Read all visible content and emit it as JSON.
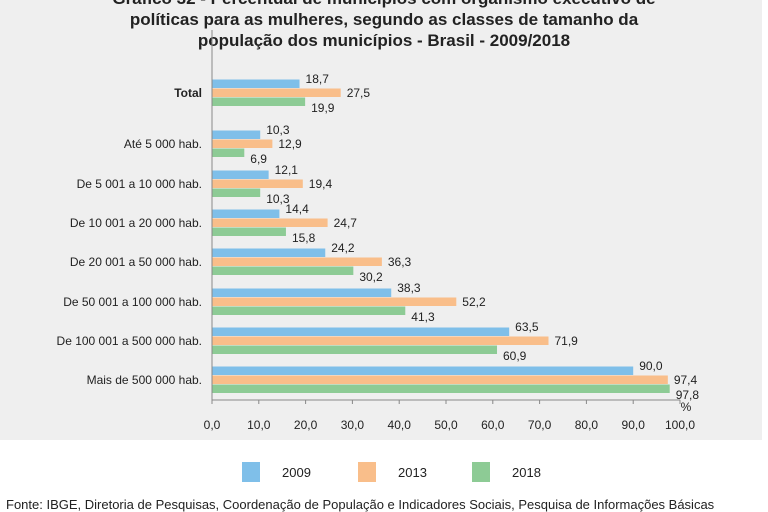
{
  "title_lines": [
    "Gráfico 32 - Percentual de municípios com organismo executivo de",
    "políticas para as mulheres, segundo as classes de tamanho da",
    "população dos municípios - Brasil - 2009/2018"
  ],
  "source": "Fonte: IBGE, Diretoria de Pesquisas, Coordenação de População e Indicadores Sociais, Pesquisa de Informações Básicas",
  "chart_data": {
    "type": "bar",
    "orientation": "horizontal",
    "title": "Gráfico 32 - Percentual de municípios com organismo executivo de políticas para as mulheres, segundo as classes de tamanho da população dos municípios - Brasil - 2009/2018",
    "categories": [
      "Total",
      "Até 5 000 hab.",
      "De 5 001 a 10 000 hab.",
      "De 10 001 a 20 000 hab.",
      "De 20 001 a 50 000 hab.",
      "De 50 001 a 100 000 hab.",
      "De 100 001 a 500 000 hab.",
      "Mais de 500 000 hab."
    ],
    "series": [
      {
        "name": "2009",
        "color": "#7fbfe9",
        "values": [
          18.7,
          10.3,
          12.1,
          14.4,
          24.2,
          38.3,
          63.5,
          90.0
        ]
      },
      {
        "name": "2013",
        "color": "#f9be8a",
        "values": [
          27.5,
          12.9,
          19.4,
          24.7,
          36.3,
          52.2,
          71.9,
          97.4
        ]
      },
      {
        "name": "2018",
        "color": "#8dcb95",
        "values": [
          19.9,
          6.9,
          10.3,
          15.8,
          30.2,
          41.3,
          60.9,
          97.8
        ]
      }
    ],
    "xlabel": "%",
    "xlim": [
      0,
      100
    ],
    "xticks": [
      "0,0",
      "10,0",
      "20,0",
      "30,0",
      "40,0",
      "50,0",
      "60,0",
      "70,0",
      "80,0",
      "90,0",
      "100,0"
    ],
    "grid": false,
    "legend": "bottom"
  }
}
